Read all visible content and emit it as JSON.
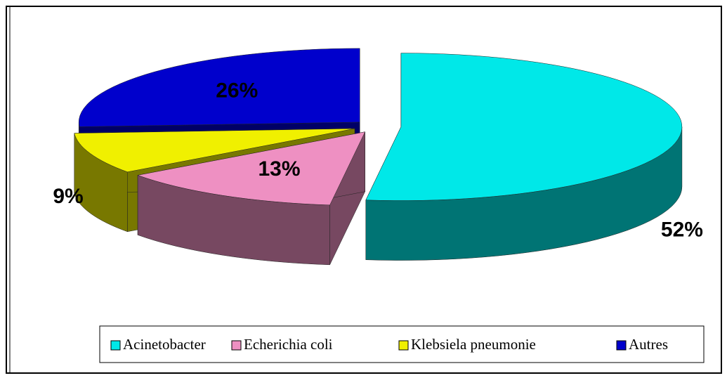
{
  "chart_data": {
    "type": "pie",
    "three_d": true,
    "exploded": true,
    "categories": [
      "Acinetobacter",
      "Echerichia coli",
      "Klebsiela pneumonie",
      "Autres"
    ],
    "values": [
      52,
      13,
      9,
      26
    ],
    "value_labels": [
      "52%",
      "13%",
      "9%",
      "26%"
    ],
    "colors": [
      "#00e8e8",
      "#ee90c2",
      "#f0f000",
      "#0000cc"
    ],
    "legend": "bottom"
  }
}
